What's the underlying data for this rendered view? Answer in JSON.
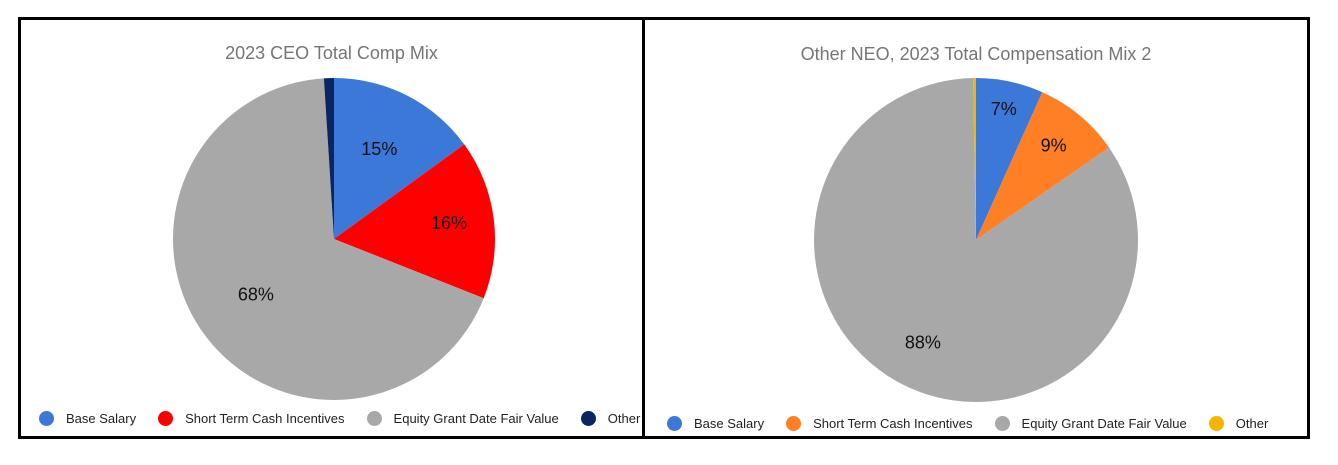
{
  "chart_data": [
    {
      "type": "pie",
      "title": "2023 CEO Total Comp Mix",
      "slices": [
        {
          "name": "Base Salary",
          "value": 15,
          "label": "15%",
          "color": "#3c78d8"
        },
        {
          "name": "Short Term Cash Incentives",
          "value": 16,
          "label": "16%",
          "color": "#ff0000"
        },
        {
          "name": "Equity Grant Date Fair Value",
          "value": 68,
          "label": "68%",
          "color": "#a8a8a8"
        },
        {
          "name": "Other",
          "value": 1,
          "label": "",
          "color": "#0b2560"
        }
      ],
      "legend_position": "bottom"
    },
    {
      "type": "pie",
      "title": "Other NEO, 2023 Total Compensation Mix 2",
      "slices": [
        {
          "name": "Base Salary",
          "value": 7,
          "label": "7%",
          "color": "#3c78d8"
        },
        {
          "name": "Short Term Cash Incentives",
          "value": 9,
          "label": "9%",
          "color": "#ff7f24"
        },
        {
          "name": "Equity Grant Date Fair Value",
          "value": 88,
          "label": "88%",
          "color": "#a8a8a8"
        },
        {
          "name": "Other",
          "value": 0.3,
          "label": "",
          "color": "#f4b400"
        }
      ],
      "legend_position": "bottom"
    }
  ]
}
